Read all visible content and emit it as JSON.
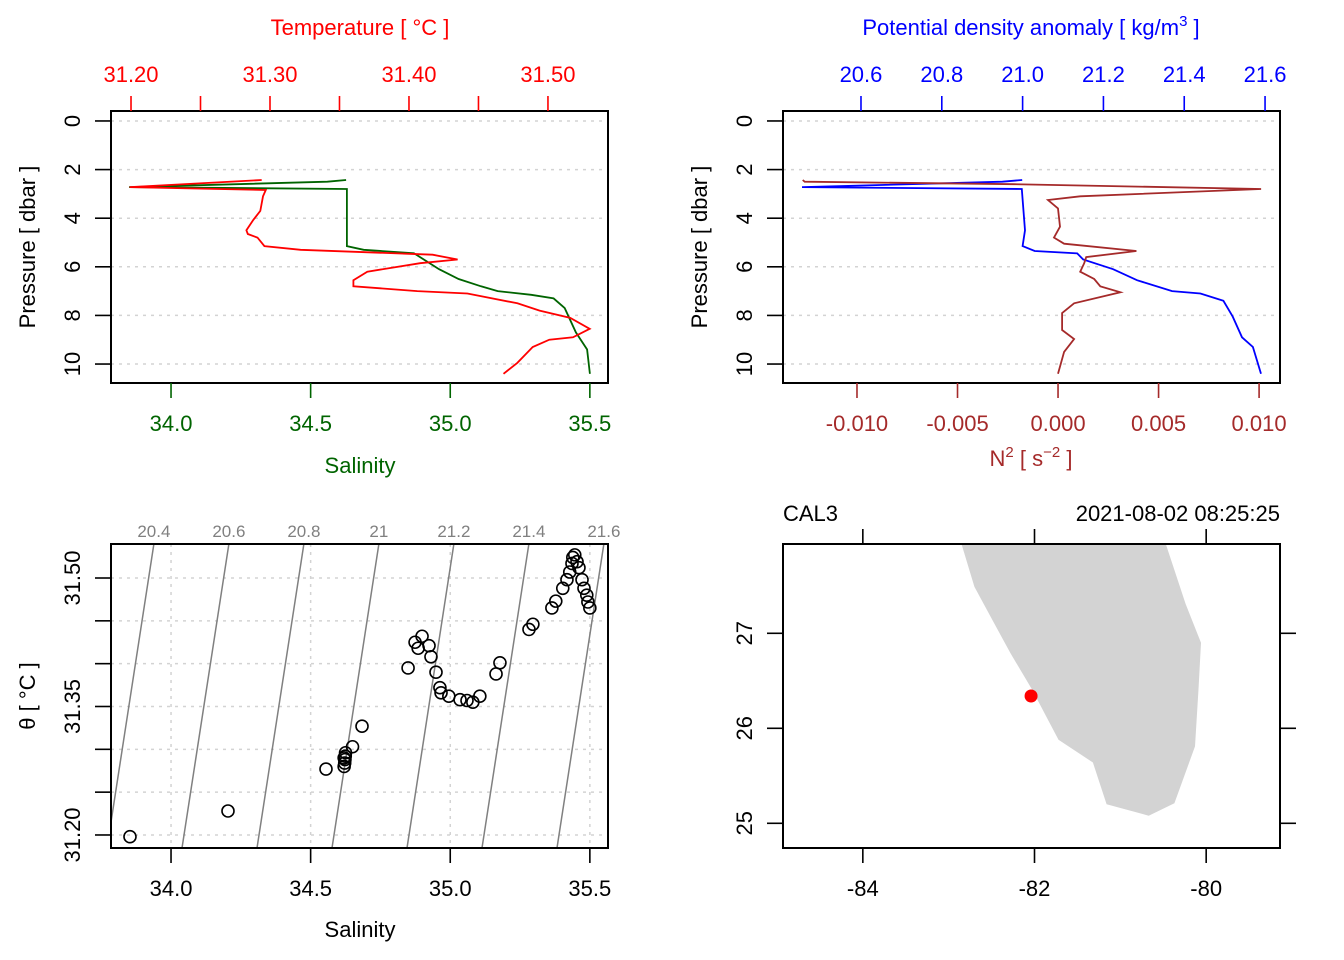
{
  "colors": {
    "temperature": "#ff0000",
    "salinity": "#006400",
    "density": "#0000ff",
    "n2": "#a52a2a",
    "isopycnal": "#808080",
    "land": "#d3d3d3",
    "station": "#ff0000",
    "grid": "#d3d3d3"
  },
  "chart_data": [
    {
      "type": "line",
      "panel": "salinity-temperature-profile",
      "ylabel": "Pressure [ dbar ]",
      "ylim": [
        10.78,
        -0.41
      ],
      "y_ticks": [
        "0",
        "2",
        "4",
        "6",
        "8",
        "10"
      ],
      "grid": true,
      "bottom_axis": {
        "label": "Salinity",
        "lim": [
          33.785,
          35.565
        ],
        "ticks": [
          "34.0",
          "34.5",
          "35.0",
          "35.5"
        ],
        "color": "#006400"
      },
      "top_axis": {
        "label": "Temperature [ °C ]",
        "lim": [
          31.1856,
          31.5432
        ],
        "ticks": [
          "31.20",
          "31.30",
          "31.40",
          "31.50"
        ],
        "minor_ticks": [
          31.25,
          31.35,
          31.45
        ],
        "color": "#ff0000"
      },
      "series": [
        {
          "name": "Salinity",
          "axis": "bottom",
          "color": "#006400",
          "points": [
            [
              34.627,
              2.43
            ],
            [
              34.56,
              2.5
            ],
            [
              33.85,
              2.72
            ],
            [
              34.63,
              2.8
            ],
            [
              34.63,
              5.15
            ],
            [
              34.69,
              5.3
            ],
            [
              34.87,
              5.44
            ],
            [
              34.96,
              6.1
            ],
            [
              35.03,
              6.5
            ],
            [
              35.11,
              6.8
            ],
            [
              35.17,
              7.0
            ],
            [
              35.29,
              7.15
            ],
            [
              35.37,
              7.3
            ],
            [
              35.41,
              7.7
            ],
            [
              35.45,
              8.7
            ],
            [
              35.49,
              9.4
            ],
            [
              35.5,
              10.4
            ]
          ]
        },
        {
          "name": "Temperature",
          "axis": "top",
          "color": "#ff0000",
          "points": [
            [
              31.294,
              2.43
            ],
            [
              31.199,
              2.72
            ],
            [
              31.297,
              2.84
            ],
            [
              31.295,
              3.1
            ],
            [
              31.293,
              3.7
            ],
            [
              31.288,
              4.07
            ],
            [
              31.283,
              4.5
            ],
            [
              31.284,
              4.65
            ],
            [
              31.291,
              4.8
            ],
            [
              31.296,
              5.15
            ],
            [
              31.322,
              5.3
            ],
            [
              31.417,
              5.5
            ],
            [
              31.435,
              5.7
            ],
            [
              31.408,
              5.85
            ],
            [
              31.37,
              6.2
            ],
            [
              31.36,
              6.55
            ],
            [
              31.36,
              6.8
            ],
            [
              31.406,
              7.0
            ],
            [
              31.442,
              7.1
            ],
            [
              31.478,
              7.5
            ],
            [
              31.494,
              7.8
            ],
            [
              31.516,
              8.1
            ],
            [
              31.53,
              8.55
            ],
            [
              31.518,
              8.9
            ],
            [
              31.501,
              9.0
            ],
            [
              31.489,
              9.3
            ],
            [
              31.478,
              9.95
            ],
            [
              31.468,
              10.4
            ]
          ]
        }
      ]
    },
    {
      "type": "line",
      "panel": "density-n2-profile",
      "ylabel": "Pressure [ dbar ]",
      "ylim": [
        10.78,
        -0.41
      ],
      "y_ticks": [
        "0",
        "2",
        "4",
        "6",
        "8",
        "10"
      ],
      "grid": true,
      "top_axis": {
        "label_main": "Potential density anomaly [ kg/m",
        "label_sup": "3",
        "label_end": " ]",
        "lim": [
          20.407,
          21.637
        ],
        "ticks": [
          "20.6",
          "20.8",
          "21.0",
          "21.2",
          "21.4",
          "21.6"
        ],
        "color": "#0000ff"
      },
      "bottom_axis": {
        "label_main": "N",
        "label_sup": "2",
        "label_mid": " [ s",
        "label_sup2": "−2",
        "label_end": " ]",
        "lim": [
          -0.01368,
          0.01104
        ],
        "ticks": [
          "-0.010",
          "-0.005",
          "0.000",
          "0.005",
          "0.010"
        ],
        "color": "#a52a2a"
      },
      "series": [
        {
          "name": "Potential density anomaly",
          "axis": "top",
          "color": "#0000ff",
          "points": [
            [
              20.999,
              2.43
            ],
            [
              20.95,
              2.5
            ],
            [
              20.454,
              2.72
            ],
            [
              20.998,
              2.8
            ],
            [
              21.006,
              4.5
            ],
            [
              21.0,
              5.15
            ],
            [
              21.03,
              5.35
            ],
            [
              21.135,
              5.45
            ],
            [
              21.15,
              5.7
            ],
            [
              21.224,
              6.1
            ],
            [
              21.283,
              6.55
            ],
            [
              21.37,
              7.0
            ],
            [
              21.44,
              7.1
            ],
            [
              21.497,
              7.4
            ],
            [
              21.52,
              8.05
            ],
            [
              21.543,
              8.9
            ],
            [
              21.57,
              9.3
            ],
            [
              21.59,
              10.4
            ]
          ]
        },
        {
          "name": "N2",
          "axis": "bottom",
          "color": "#a52a2a",
          "points": [
            [
              -0.0127,
              2.43
            ],
            [
              -0.0126,
              2.5
            ],
            [
              -0.0022,
              2.6
            ],
            [
              0.0101,
              2.8
            ],
            [
              0.0011,
              3.1
            ],
            [
              -0.0005,
              3.25
            ],
            [
              0.0,
              3.6
            ],
            [
              0.0001,
              4.35
            ],
            [
              -0.0002,
              4.8
            ],
            [
              0.0003,
              5.05
            ],
            [
              0.0039,
              5.35
            ],
            [
              0.0014,
              5.6
            ],
            [
              0.0013,
              5.85
            ],
            [
              0.0011,
              6.2
            ],
            [
              0.0018,
              6.5
            ],
            [
              0.0021,
              6.8
            ],
            [
              0.0031,
              7.05
            ],
            [
              0.0008,
              7.5
            ],
            [
              0.0002,
              7.9
            ],
            [
              0.0002,
              8.6
            ],
            [
              0.0008,
              8.97
            ],
            [
              0.0003,
              9.5
            ],
            [
              0.0,
              10.4
            ]
          ]
        }
      ]
    },
    {
      "type": "scatter",
      "panel": "ts-diagram",
      "xlabel": "Salinity",
      "ylabel": "θ [ °C ]",
      "xlim": [
        33.785,
        35.565
      ],
      "ylim": [
        31.1848,
        31.5397
      ],
      "x_ticks": [
        "34.0",
        "34.5",
        "35.0",
        "35.5"
      ],
      "y_ticks": [
        "31.20",
        "31.35",
        "31.50"
      ],
      "y_minor_ticks": [
        31.25,
        31.3,
        31.4,
        31.45
      ],
      "grid": true,
      "isopycnals": [
        "20.4",
        "20.6",
        "20.8",
        "21",
        "21.2",
        "21.4",
        "21.6"
      ],
      "points": [
        [
          33.853,
          31.198
        ],
        [
          34.204,
          31.228
        ],
        [
          34.555,
          31.277
        ],
        [
          34.62,
          31.28
        ],
        [
          34.622,
          31.284
        ],
        [
          34.623,
          31.288
        ],
        [
          34.624,
          31.292
        ],
        [
          34.625,
          31.296
        ],
        [
          34.62,
          31.29
        ],
        [
          34.65,
          31.303
        ],
        [
          34.684,
          31.327
        ],
        [
          34.849,
          31.395
        ],
        [
          34.874,
          31.425
        ],
        [
          34.885,
          31.418
        ],
        [
          34.899,
          31.432
        ],
        [
          34.924,
          31.421
        ],
        [
          34.931,
          31.408
        ],
        [
          34.949,
          31.39
        ],
        [
          34.963,
          31.372
        ],
        [
          34.967,
          31.366
        ],
        [
          34.995,
          31.362
        ],
        [
          35.035,
          31.358
        ],
        [
          35.06,
          31.357
        ],
        [
          35.081,
          31.355
        ],
        [
          35.106,
          31.362
        ],
        [
          35.164,
          31.388
        ],
        [
          35.178,
          31.401
        ],
        [
          35.282,
          31.44
        ],
        [
          35.296,
          31.446
        ],
        [
          35.364,
          31.465
        ],
        [
          35.378,
          31.473
        ],
        [
          35.403,
          31.488
        ],
        [
          35.418,
          31.498
        ],
        [
          35.428,
          31.507
        ],
        [
          35.436,
          31.517
        ],
        [
          35.439,
          31.524
        ],
        [
          35.446,
          31.527
        ],
        [
          35.454,
          31.519
        ],
        [
          35.461,
          31.512
        ],
        [
          35.472,
          31.498
        ],
        [
          35.479,
          31.488
        ],
        [
          35.489,
          31.48
        ],
        [
          35.493,
          31.472
        ],
        [
          35.5,
          31.465
        ]
      ]
    },
    {
      "type": "map",
      "panel": "station-map",
      "station": "CAL3",
      "time": "2021-08-02 08:25:25",
      "xlim": [
        -84.93,
        -79.14
      ],
      "ylim": [
        24.74,
        27.94
      ],
      "x_ticks": [
        "-84",
        "-82",
        "-80"
      ],
      "y_ticks": [
        "25",
        "26",
        "27"
      ],
      "station_position": [
        -82.04,
        26.34
      ],
      "land": [
        [
          -82.85,
          27.94
        ],
        [
          -82.7,
          27.49
        ],
        [
          -82.49,
          27.14
        ],
        [
          -82.28,
          26.79
        ],
        [
          -82.03,
          26.41
        ],
        [
          -81.72,
          25.88
        ],
        [
          -81.32,
          25.64
        ],
        [
          -81.16,
          25.2
        ],
        [
          -80.67,
          25.08
        ],
        [
          -80.37,
          25.21
        ],
        [
          -80.13,
          25.81
        ],
        [
          -80.09,
          26.41
        ],
        [
          -80.06,
          26.9
        ],
        [
          -80.24,
          27.31
        ],
        [
          -80.47,
          27.94
        ]
      ]
    }
  ]
}
